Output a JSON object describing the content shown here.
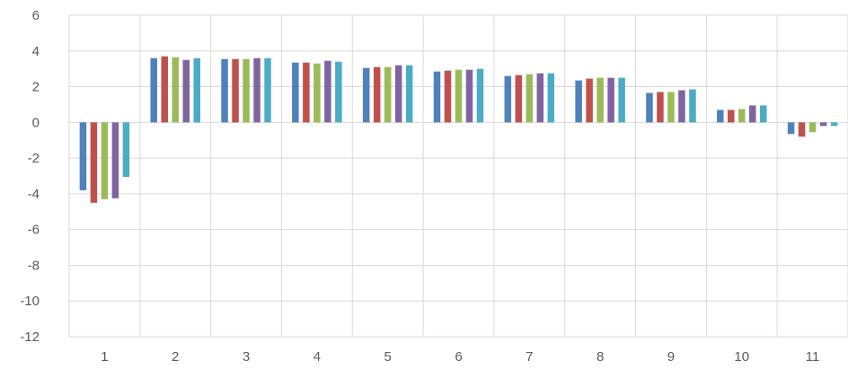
{
  "chart_data": {
    "type": "bar",
    "title": "",
    "xlabel": "",
    "ylabel": "",
    "categories": [
      "1",
      "2",
      "3",
      "4",
      "5",
      "6",
      "7",
      "8",
      "9",
      "10",
      "11"
    ],
    "ylim": [
      -12,
      6
    ],
    "yticks": [
      6,
      4,
      2,
      0,
      -2,
      -4,
      -6,
      -8,
      -10,
      -12
    ],
    "yticklabels": [
      "6",
      "4",
      "2",
      "0",
      "-2",
      "-4",
      "-6",
      "-8",
      "-10",
      "-12"
    ],
    "grid": true,
    "legend": "none",
    "series": [
      {
        "color": "#4F81BD",
        "values": [
          -3.8,
          3.6,
          3.55,
          3.35,
          3.05,
          2.85,
          2.6,
          2.35,
          1.65,
          0.7,
          -0.65
        ]
      },
      {
        "color": "#C0504D",
        "values": [
          -4.5,
          3.7,
          3.55,
          3.35,
          3.1,
          2.9,
          2.65,
          2.45,
          1.7,
          0.7,
          -0.8
        ]
      },
      {
        "color": "#9BBB59",
        "values": [
          -4.3,
          3.65,
          3.55,
          3.3,
          3.1,
          2.95,
          2.7,
          2.5,
          1.7,
          0.75,
          -0.55
        ]
      },
      {
        "color": "#8064A2",
        "values": [
          -4.25,
          3.5,
          3.6,
          3.45,
          3.2,
          2.95,
          2.75,
          2.5,
          1.8,
          0.95,
          -0.2
        ]
      },
      {
        "color": "#4BACC6",
        "values": [
          -3.05,
          3.6,
          3.6,
          3.4,
          3.2,
          3.0,
          2.75,
          2.5,
          1.85,
          0.95,
          -0.2
        ]
      }
    ]
  }
}
